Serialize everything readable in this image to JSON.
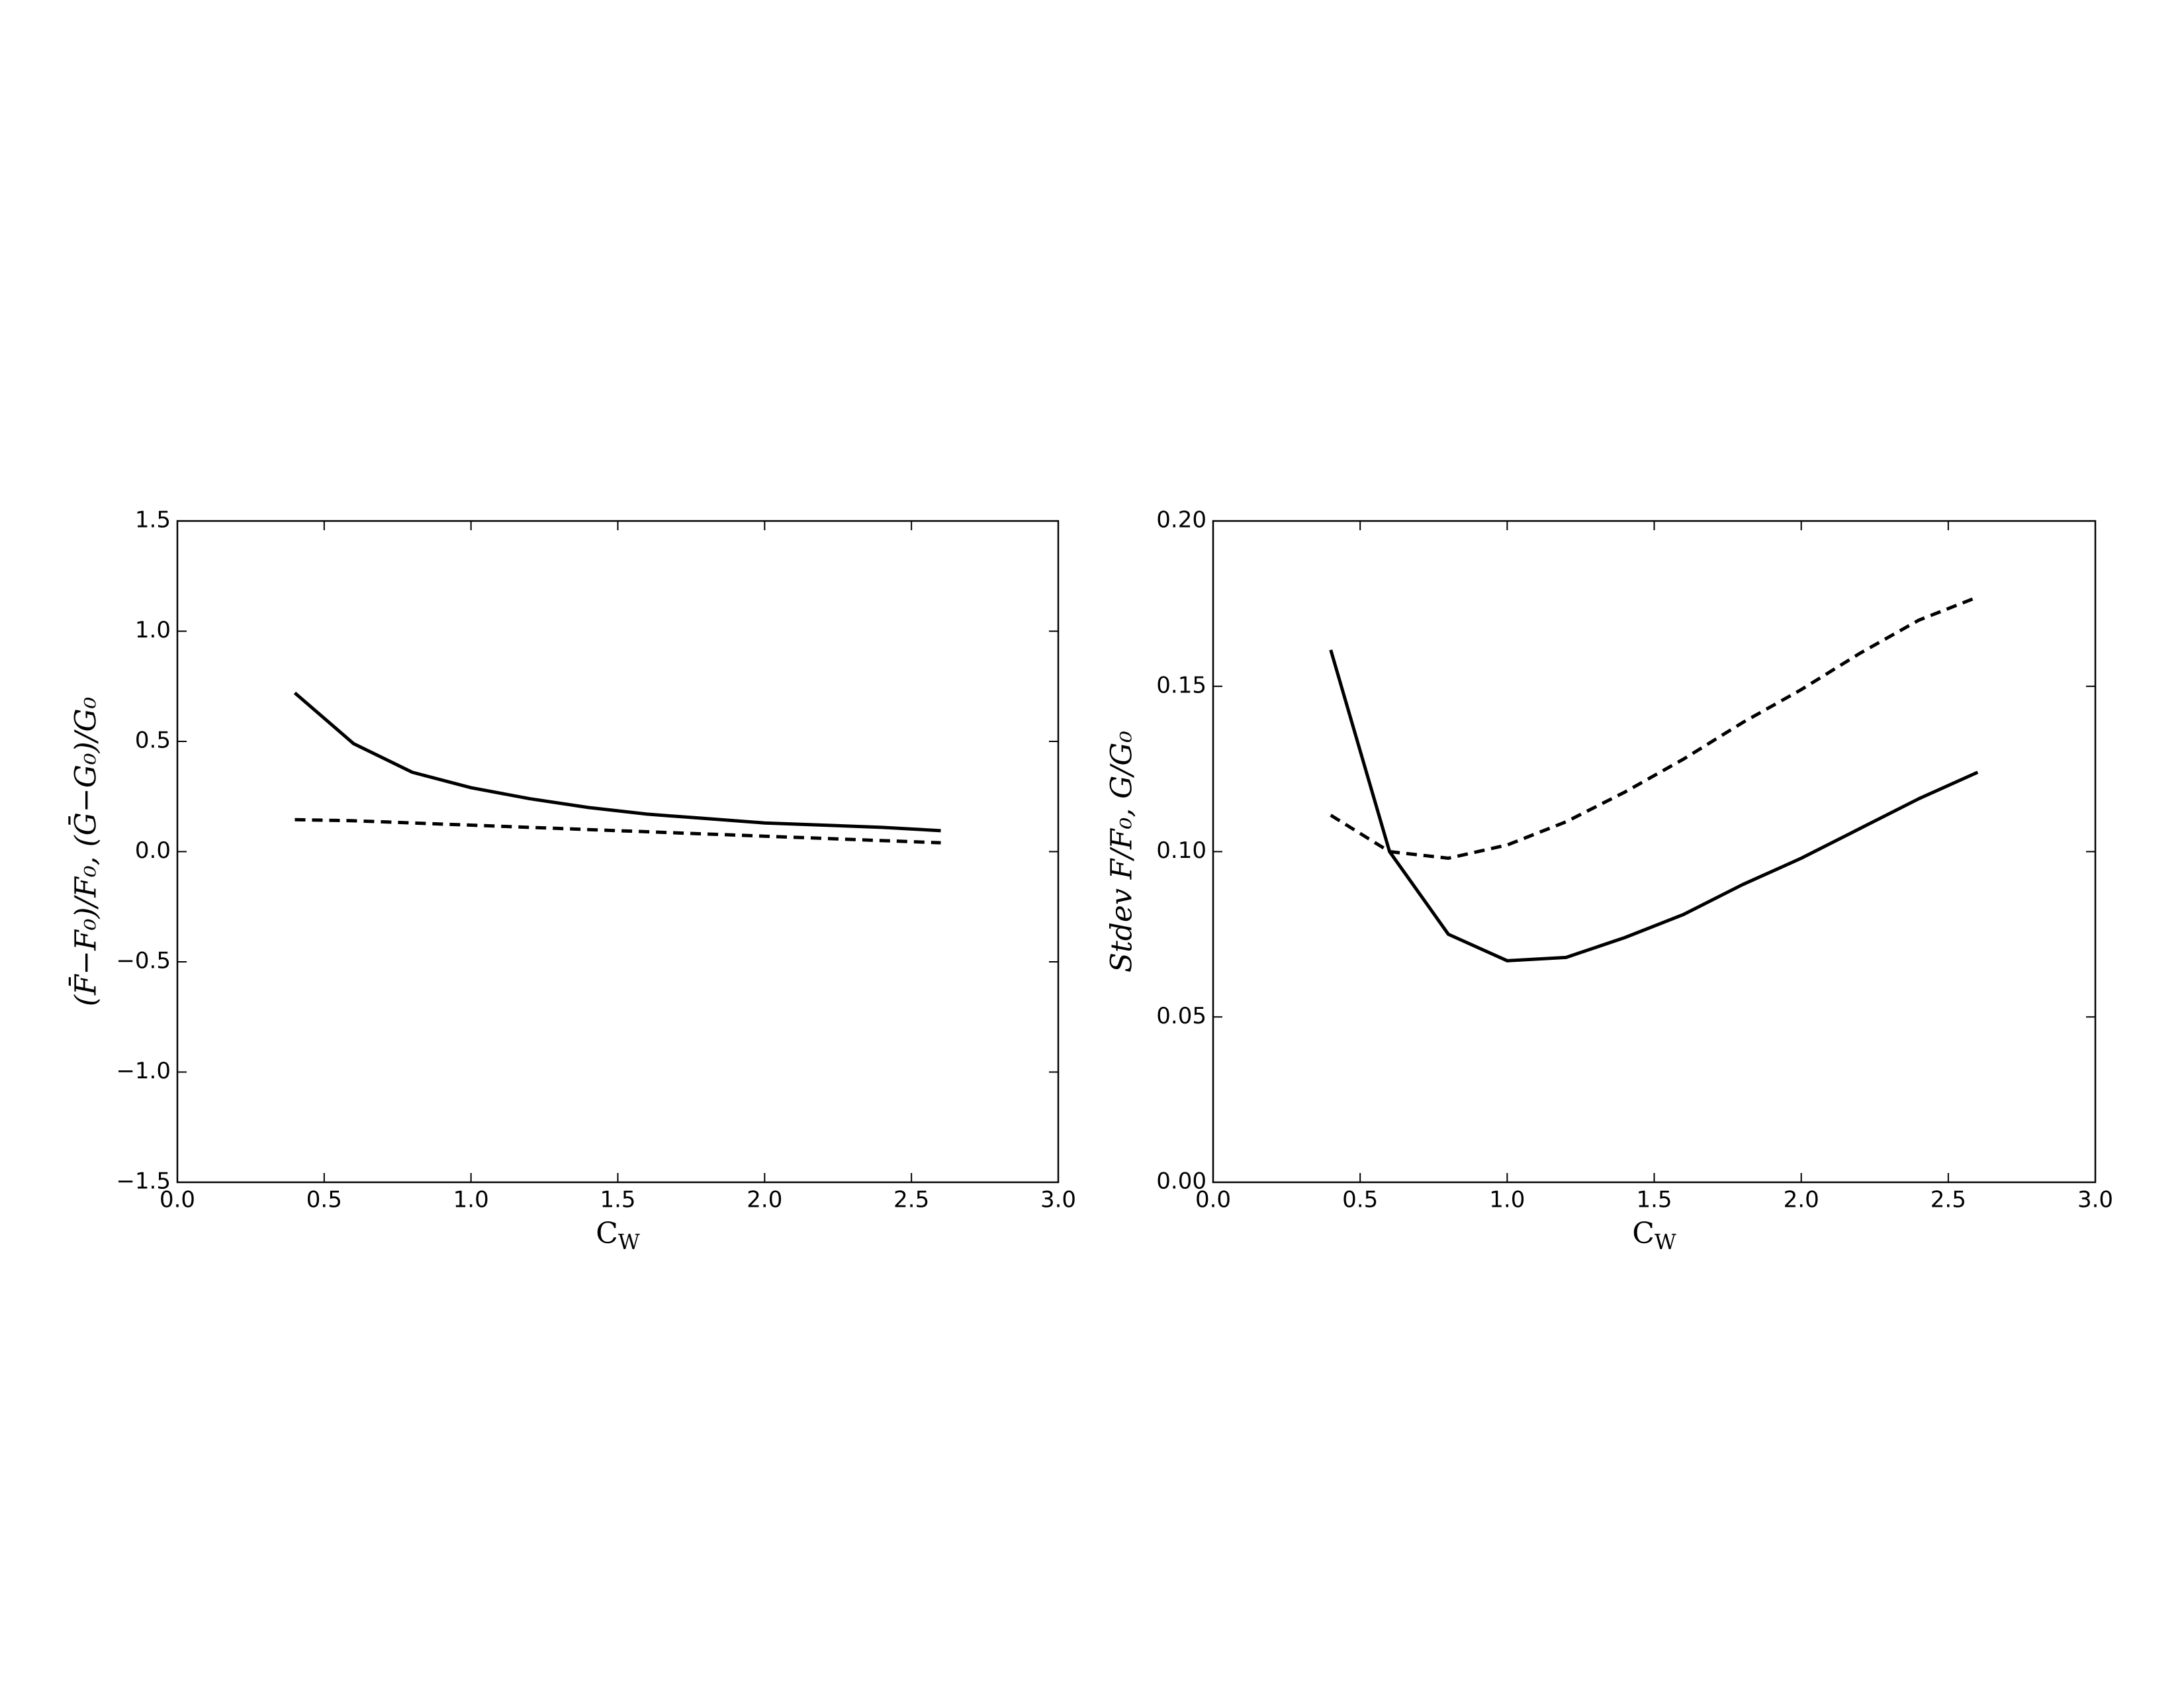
{
  "chart_data": [
    {
      "type": "line",
      "xlabel": "C_W",
      "ylabel": "(F̄−F₀)/F₀, (Ḡ−G₀)/G₀",
      "x": [
        0.4,
        0.6,
        0.8,
        1.0,
        1.2,
        1.4,
        1.6,
        1.8,
        2.0,
        2.2,
        2.4,
        2.6
      ],
      "series": [
        {
          "color": "#000000",
          "style": "solid",
          "values": [
            0.72,
            0.49,
            0.36,
            0.29,
            0.24,
            0.2,
            0.17,
            0.15,
            0.13,
            0.12,
            0.11,
            0.095
          ]
        },
        {
          "color": "#000000",
          "style": "dashed",
          "values": [
            0.145,
            0.14,
            0.13,
            0.12,
            0.11,
            0.1,
            0.09,
            0.08,
            0.07,
            0.06,
            0.05,
            0.04
          ]
        }
      ],
      "xlim": [
        0,
        3
      ],
      "xticks": [
        {
          "value": 0,
          "label": "0.0"
        },
        0.5,
        {
          "value": 1,
          "label": "1.0"
        },
        1.5,
        {
          "value": 2,
          "label": "2.0"
        },
        2.5,
        {
          "value": 3,
          "label": "3.0"
        }
      ],
      "ylim": [
        -1.5,
        1.5
      ],
      "yticks": [
        {
          "value": -1.5,
          "label": "−1.5"
        },
        {
          "value": -1,
          "label": "−1.0"
        },
        {
          "value": -0.5,
          "label": "−0.5"
        },
        {
          "value": 0,
          "label": "0.0"
        },
        0.5,
        {
          "value": 1,
          "label": "1.0"
        },
        1.5
      ]
    },
    {
      "type": "line",
      "xlabel": "C_W",
      "ylabel": "Stdev F/F₀, G/G₀",
      "x": [
        0.4,
        0.6,
        0.8,
        1.0,
        1.2,
        1.4,
        1.6,
        1.8,
        2.0,
        2.2,
        2.4,
        2.6
      ],
      "series": [
        {
          "color": "#000000",
          "style": "solid",
          "values": [
            0.161,
            0.1,
            0.075,
            0.067,
            0.068,
            0.074,
            0.081,
            0.09,
            0.098,
            0.107,
            0.116,
            0.124
          ]
        },
        {
          "color": "#000000",
          "style": "dashed",
          "values": [
            0.111,
            0.1,
            0.098,
            0.102,
            0.109,
            0.118,
            0.128,
            0.139,
            0.149,
            0.16,
            0.17,
            0.177
          ]
        }
      ],
      "xlim": [
        0,
        3
      ],
      "xticks": [
        {
          "value": 0,
          "label": "0.0"
        },
        0.5,
        {
          "value": 1,
          "label": "1.0"
        },
        1.5,
        {
          "value": 2,
          "label": "2.0"
        },
        2.5,
        {
          "value": 3,
          "label": "3.0"
        }
      ],
      "ylim": [
        0,
        0.2
      ],
      "yticks": [
        {
          "value": 0,
          "label": "0.00"
        },
        0.05,
        {
          "value": 0.1,
          "label": "0.10"
        },
        0.15,
        {
          "value": 0.2,
          "label": "0.20"
        }
      ]
    }
  ]
}
